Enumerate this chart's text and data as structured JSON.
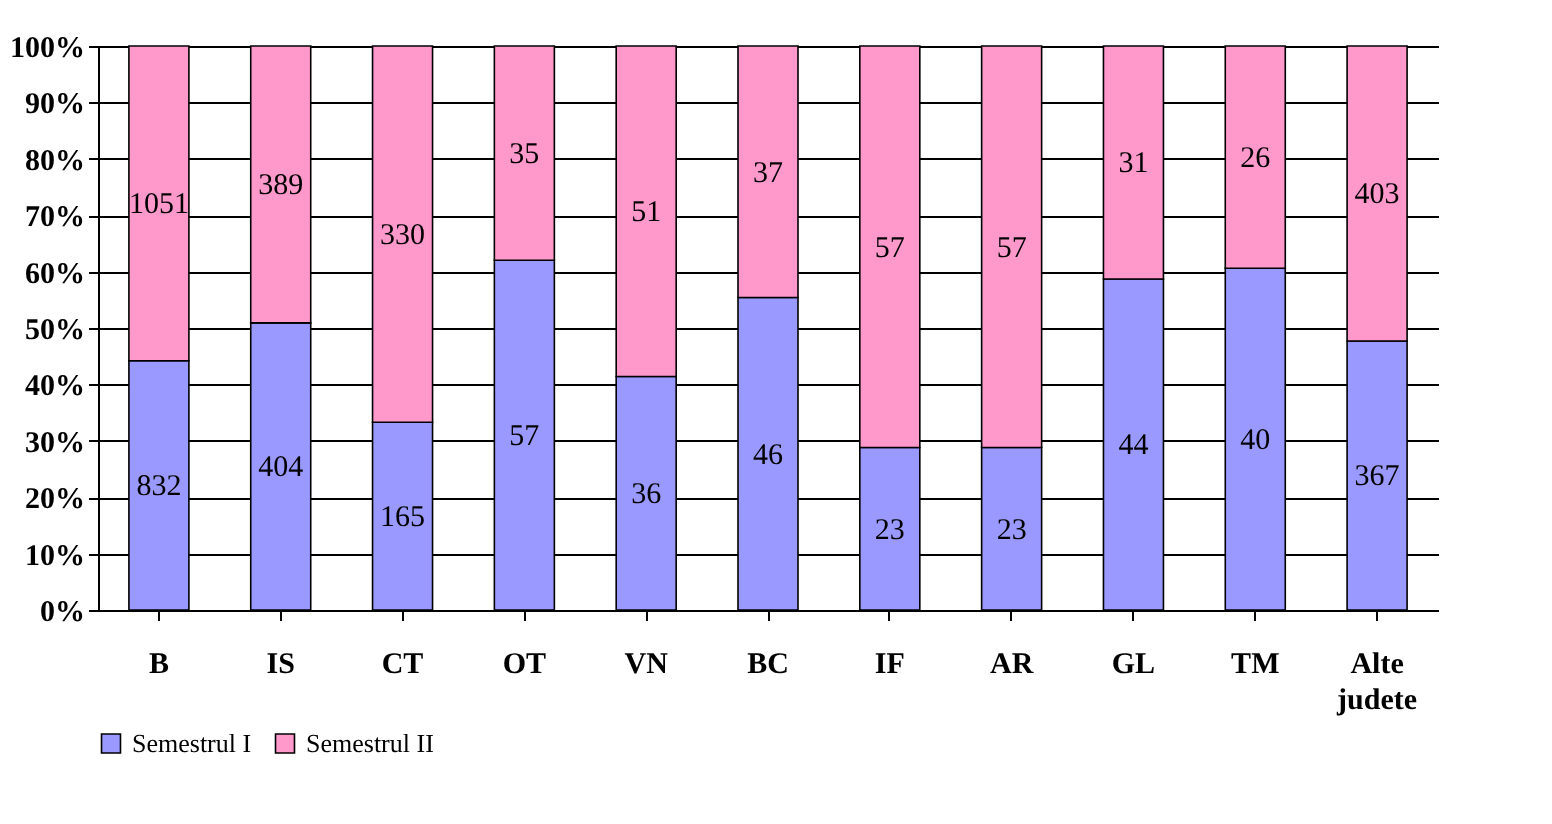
{
  "chart_data": {
    "type": "bar",
    "stacked": true,
    "categories": [
      "B",
      "IS",
      "CT",
      "OT",
      "VN",
      "BC",
      "IF",
      "AR",
      "GL",
      "TM",
      "Alte judete"
    ],
    "series": [
      {
        "name": "Semestrul I",
        "color": "#9999ff",
        "values": [
          44.2,
          50.9,
          33.3,
          62.0,
          41.4,
          55.4,
          28.8,
          28.8,
          58.7,
          60.6,
          47.7
        ]
      },
      {
        "name": "Semestrul II",
        "color": "#ff99cc",
        "values": [
          55.8,
          49.1,
          66.7,
          38.0,
          58.6,
          44.6,
          71.2,
          71.2,
          41.3,
          39.4,
          52.3
        ]
      }
    ],
    "annotations": [
      "832",
      "404",
      "165",
      "57",
      "36",
      "46",
      "23",
      "23",
      "44",
      "40",
      "367",
      "1051",
      "389",
      "330",
      "35",
      "51",
      "37",
      "57",
      "57",
      "31",
      "26",
      "403"
    ],
    "ylim": [
      0,
      100
    ],
    "yticks": [
      {
        "value": 0,
        "label": "0%"
      },
      {
        "value": 10,
        "label": "10%"
      },
      {
        "value": 20,
        "label": "20%"
      },
      {
        "value": 30,
        "label": "30%"
      },
      {
        "value": 40,
        "label": "40%"
      },
      {
        "value": 50,
        "label": "50%"
      },
      {
        "value": 60,
        "label": "60%"
      },
      {
        "value": 70,
        "label": "70%"
      },
      {
        "value": 80,
        "label": "80%"
      },
      {
        "value": 90,
        "label": "90%"
      },
      {
        "value": 100,
        "label": "100%"
      }
    ],
    "grid": "y",
    "legend": "bottom"
  }
}
